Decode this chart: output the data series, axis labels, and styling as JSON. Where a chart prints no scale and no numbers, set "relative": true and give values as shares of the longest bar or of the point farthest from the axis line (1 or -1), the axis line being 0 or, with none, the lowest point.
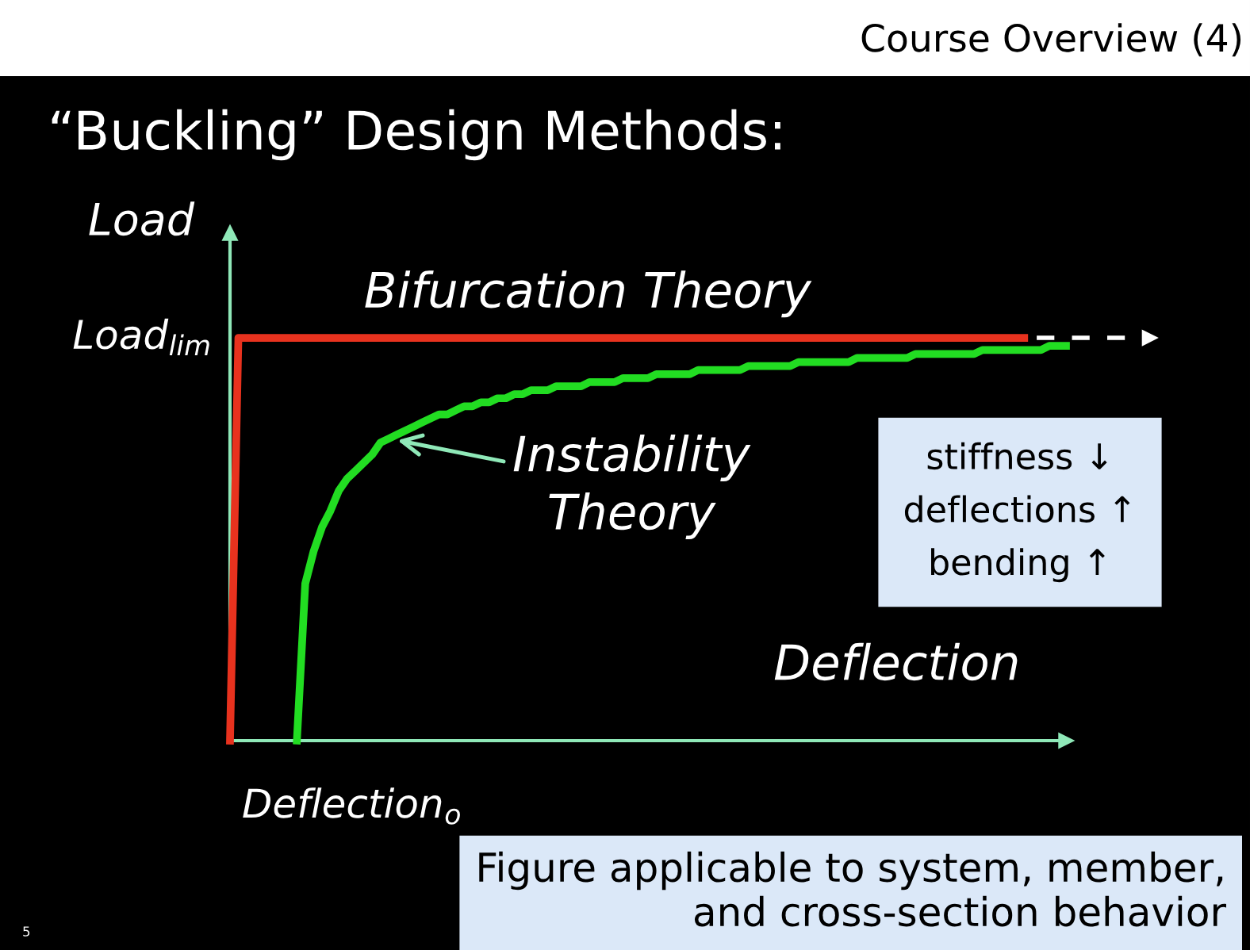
{
  "chart_data": {
    "type": "line",
    "title": "Course Overview (4)",
    "subtitle": "“Buckling” Design Methods:",
    "xlabel": "Deflection",
    "ylabel": "Load",
    "relative": true,
    "line_style": "solid",
    "marker": "none",
    "categories": [
      null,
      null,
      null,
      null,
      null,
      null,
      null,
      null,
      null,
      null,
      null,
      null,
      null,
      null,
      null,
      null,
      null,
      null,
      null,
      null,
      null,
      null,
      null,
      null,
      null,
      null,
      null,
      null,
      null,
      null,
      null,
      null,
      null,
      null,
      null,
      null,
      null,
      null,
      null,
      null,
      null,
      null,
      null,
      null,
      null,
      null,
      null,
      null,
      null,
      null,
      null,
      null,
      null,
      null,
      null,
      null,
      null,
      null,
      null,
      null,
      null,
      null,
      null,
      null,
      null,
      null,
      null,
      null,
      null,
      null,
      null,
      null,
      null,
      null,
      null,
      null,
      null,
      null,
      null,
      null,
      null,
      null,
      null,
      null,
      null,
      null,
      null,
      null,
      null,
      null,
      null,
      null,
      null,
      null,
      null,
      null,
      null,
      null,
      null,
      null,
      null
    ],
    "series": [
      {
        "color": "#e8321e",
        "values": [
          0,
          1,
          1,
          1,
          1,
          1,
          1,
          1,
          1,
          1,
          1,
          1,
          1,
          1,
          1,
          1,
          1,
          1,
          1,
          1,
          1,
          1,
          1,
          1,
          1,
          1,
          1,
          1,
          1,
          1,
          1,
          1,
          1,
          1,
          1,
          1,
          1,
          1,
          1,
          1,
          1,
          1,
          1,
          1,
          1,
          1,
          1,
          1,
          1,
          1,
          1,
          1,
          1,
          1,
          1,
          1,
          1,
          1,
          1,
          1,
          1,
          1,
          1,
          1,
          1,
          1,
          1,
          1,
          1,
          1,
          1,
          1,
          1,
          1,
          1,
          1,
          1,
          1,
          1,
          1,
          1,
          1,
          1,
          1,
          1,
          1,
          1,
          1,
          1,
          1,
          1,
          1,
          1,
          1,
          1,
          1,
          null,
          null,
          null,
          null,
          null
        ]
      },
      {
        "color": "#22dd22",
        "values": [
          null,
          null,
          null,
          null,
          null,
          null,
          null,
          null,
          0,
          0.39,
          0.47,
          0.53,
          0.57,
          0.62,
          0.65,
          0.67,
          0.69,
          0.71,
          0.74,
          0.75,
          0.76,
          0.77,
          0.78,
          0.79,
          0.8,
          0.81,
          0.81,
          0.82,
          0.83,
          0.83,
          0.84,
          0.84,
          0.85,
          0.85,
          0.86,
          0.86,
          0.87,
          0.87,
          0.87,
          0.88,
          0.88,
          0.88,
          0.88,
          0.89,
          0.89,
          0.89,
          0.89,
          0.9,
          0.9,
          0.9,
          0.9,
          0.91,
          0.91,
          0.91,
          0.91,
          0.91,
          0.92,
          0.92,
          0.92,
          0.92,
          0.92,
          0.92,
          0.93,
          0.93,
          0.93,
          0.93,
          0.93,
          0.93,
          0.94,
          0.94,
          0.94,
          0.94,
          0.94,
          0.94,
          0.94,
          0.95,
          0.95,
          0.95,
          0.95,
          0.95,
          0.95,
          0.95,
          0.96,
          0.96,
          0.96,
          0.96,
          0.96,
          0.96,
          0.96,
          0.96,
          0.97,
          0.97,
          0.97,
          0.97,
          0.97,
          0.97,
          0.97,
          0.97,
          0.98,
          0.98,
          0.98
        ]
      }
    ],
    "annotations": [
      "Load$_{lim}$",
      "Deflection$_{o}$",
      "Bifurcation Theory",
      "Instability\nTheory",
      "stiffness ↓\ndeflections ↑\nbending ↑",
      "Figure applicable to system, member,\nand cross-section behavior",
      "5"
    ]
  }
}
